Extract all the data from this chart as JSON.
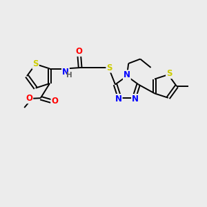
{
  "bg_color": "#ececec",
  "atom_colors": {
    "S": "#cccc00",
    "N": "#0000ff",
    "O": "#ff0000",
    "C": "#000000",
    "H": "#606060"
  },
  "bond_color": "#000000",
  "bond_width": 1.4,
  "font_size_atom": 8.5
}
